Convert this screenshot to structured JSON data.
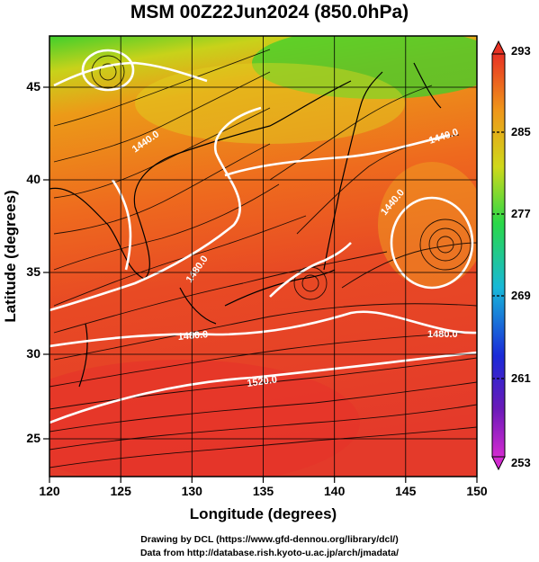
{
  "title": "MSM 00Z22Jun2024 (850.0hPa)",
  "x_axis": {
    "label": "Longitude (degrees)",
    "ticks": [
      "120",
      "125",
      "130",
      "135",
      "140",
      "145",
      "150"
    ]
  },
  "y_axis": {
    "label": "Latitude  (degrees)",
    "ticks": [
      "25",
      "30",
      "35",
      "40",
      "45"
    ]
  },
  "colorbar": {
    "ticks": [
      "293",
      "285",
      "277",
      "269",
      "261",
      "253"
    ]
  },
  "contour_labels": [
    "1440.0",
    "1480.0",
    "1480.0",
    "1480.0",
    "1520.0",
    "1440.0",
    "1440.0"
  ],
  "credits": {
    "line1": "Drawing by DCL (https://www.gfd-dennou.org/library/dcl/)",
    "line2": "Data from http://database.rish.kyoto-u.ac.jp/arch/jmadata/"
  },
  "colors": {
    "warm": "#e23a28",
    "orange": "#ef8a1c",
    "yellow": "#d8d418",
    "green": "#3ad42a",
    "contour": "#ffffff"
  }
}
